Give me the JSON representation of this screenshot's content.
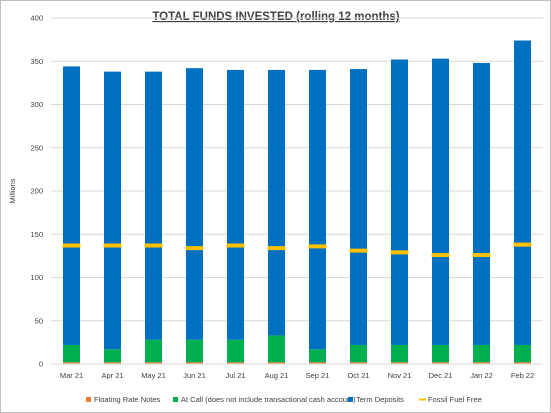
{
  "chart_data": {
    "type": "bar",
    "stacked": true,
    "title": "TOTAL FUNDS INVESTED (rolling 12 months)",
    "xlabel": "",
    "ylabel": "Millions",
    "ylim": [
      0,
      400
    ],
    "yticks": [
      0,
      50,
      100,
      150,
      200,
      250,
      300,
      350,
      400
    ],
    "grid": true,
    "legend_position": "bottom",
    "categories": [
      "Mar 21",
      "Apr 21",
      "May 21",
      "Jun 21",
      "Jul 21",
      "Aug 21",
      "Sep 21",
      "Oct 21",
      "Nov 21",
      "Dec 21",
      "Jan 22",
      "Feb 22"
    ],
    "series": [
      {
        "name": "Floating Rate Notes",
        "kind": "bar",
        "color": "#ed7d31",
        "values": [
          2,
          2,
          2,
          2,
          2,
          2,
          2,
          2,
          2,
          2,
          2,
          2
        ]
      },
      {
        "name": "At Call (does not include transactional cash account)",
        "kind": "bar",
        "color": "#00b050",
        "values": [
          20,
          15,
          26,
          26,
          26,
          31,
          15,
          20,
          20,
          20,
          20,
          20
        ]
      },
      {
        "name": "Term Deposits",
        "kind": "bar",
        "color": "#0070c0",
        "values": [
          322,
          321,
          310,
          314,
          312,
          307,
          323,
          319,
          330,
          331,
          326,
          352
        ]
      },
      {
        "name": "Fossil Fuel Free",
        "kind": "marker",
        "color": "#ffc000",
        "values": [
          137,
          137,
          137,
          134,
          137,
          134,
          136,
          131,
          129,
          126,
          126,
          138
        ]
      }
    ]
  }
}
